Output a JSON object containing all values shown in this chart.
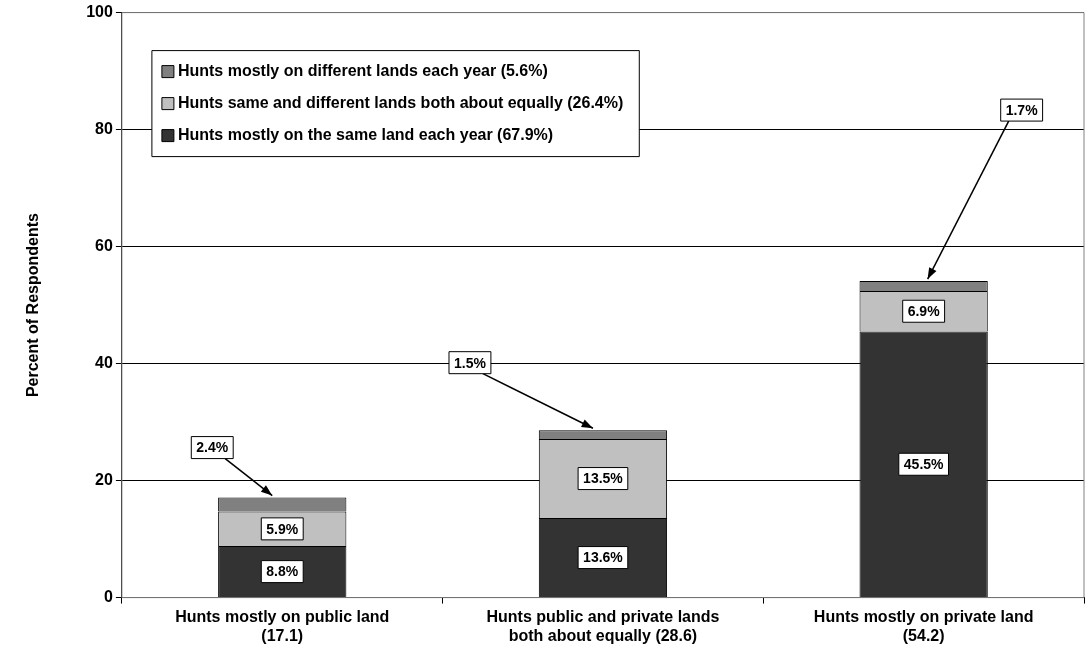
{
  "chart_data": {
    "type": "bar",
    "stacked": true,
    "ylabel": "Percent of Respondents",
    "categories": [
      "Hunts mostly on public land (17.1)",
      "Hunts public and private lands both about equally (28.6)",
      "Hunts mostly on private land (54.2)"
    ],
    "series": [
      {
        "name": "Hunts mostly on the same land each year (67.9%)",
        "color": "#333333",
        "values": [
          8.8,
          13.6,
          45.5
        ],
        "value_labels": [
          "8.8%",
          "13.6%",
          "45.5%"
        ]
      },
      {
        "name": "Hunts same and different lands both about equally (26.4%)",
        "color": "#c0c0c0",
        "values": [
          5.9,
          13.5,
          6.9
        ],
        "value_labels": [
          "5.9%",
          "13.5%",
          "6.9%"
        ]
      },
      {
        "name": "Hunts mostly on different lands each year (5.6%)",
        "color": "#808080",
        "values": [
          2.4,
          1.5,
          1.7
        ],
        "value_labels": [
          "2.4%",
          "1.5%",
          "1.7%"
        ]
      }
    ],
    "ylim": [
      0,
      100
    ],
    "yticks": [
      0,
      20,
      40,
      60,
      80,
      100
    ],
    "grid": "y",
    "legend": "top left"
  }
}
